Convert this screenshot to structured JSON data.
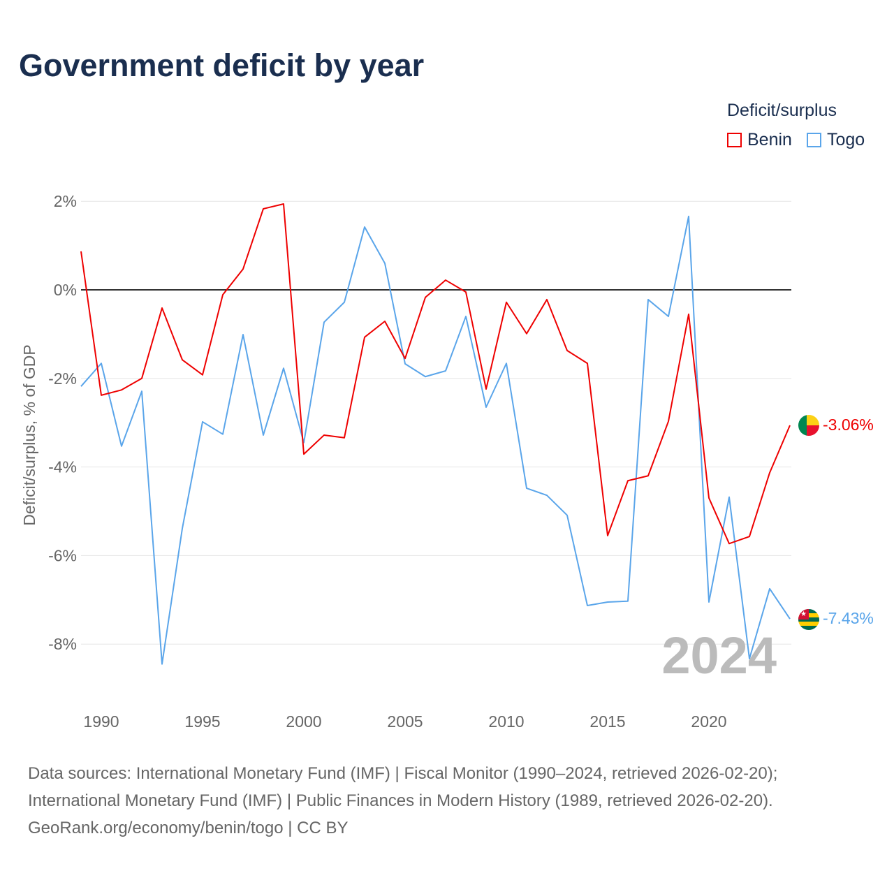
{
  "title": "Government deficit by year",
  "legend": {
    "title": "Deficit/surplus",
    "items": [
      {
        "label": "Benin",
        "color": "#ee0000"
      },
      {
        "label": "Togo",
        "color": "#5aa5ea"
      }
    ]
  },
  "watermark_year": "2024",
  "end_labels": {
    "benin": "-3.06%",
    "togo": "-7.43%"
  },
  "footer": {
    "line1": "Data sources: International Monetary Fund (IMF) | Fiscal Monitor (1990–2024, retrieved 2026-02-20);",
    "line2": "International Monetary Fund (IMF) | Public Finances in Modern History (1989, retrieved 2026-02-20).",
    "line3": "GeoRank.org/economy/benin/togo | CC BY"
  },
  "chart_data": {
    "type": "line",
    "title": "Government deficit by year",
    "xlabel": "",
    "ylabel": "Deficit/surplus, % of GDP",
    "x": [
      1989,
      1990,
      1991,
      1992,
      1993,
      1994,
      1995,
      1996,
      1997,
      1998,
      1999,
      2000,
      2001,
      2002,
      2003,
      2004,
      2005,
      2006,
      2007,
      2008,
      2009,
      2010,
      2011,
      2012,
      2013,
      2014,
      2015,
      2016,
      2017,
      2018,
      2019,
      2020,
      2021,
      2022,
      2023,
      2024
    ],
    "xticks": [
      "1990",
      "1995",
      "2000",
      "2005",
      "2010",
      "2015",
      "2020"
    ],
    "yticks": [
      "2%",
      "0%",
      "-2%",
      "-4%",
      "-6%",
      "-8%"
    ],
    "ytick_values": [
      2,
      0,
      -2,
      -4,
      -6,
      -8
    ],
    "xlim": [
      1989,
      2024
    ],
    "ylim": [
      -9.2,
      2.4
    ],
    "grid": true,
    "legend_position": "top-right",
    "series": [
      {
        "name": "Benin",
        "color": "#ee0000",
        "values": [
          0.87,
          -2.38,
          -2.26,
          -2.0,
          -0.41,
          -1.58,
          -1.92,
          -0.11,
          0.47,
          1.83,
          1.94,
          -3.71,
          -3.28,
          -3.34,
          -1.07,
          -0.71,
          -1.55,
          -0.17,
          0.22,
          -0.05,
          -2.24,
          -0.28,
          -0.99,
          -0.22,
          -1.37,
          -1.66,
          -5.55,
          -4.31,
          -4.2,
          -2.97,
          -0.55,
          -4.7,
          -5.73,
          -5.57,
          -4.13,
          -3.06
        ]
      },
      {
        "name": "Togo",
        "color": "#5aa5ea",
        "values": [
          -2.18,
          -1.66,
          -3.53,
          -2.29,
          -8.45,
          -5.39,
          -2.98,
          -3.26,
          -1.01,
          -3.28,
          -1.77,
          -3.45,
          -0.73,
          -0.28,
          1.42,
          0.6,
          -1.67,
          -1.96,
          -1.83,
          -0.6,
          -2.65,
          -1.66,
          -4.48,
          -4.64,
          -5.09,
          -7.13,
          -7.05,
          -7.03,
          -0.22,
          -0.6,
          1.66,
          -7.05,
          -4.68,
          -8.33,
          -6.75,
          -7.43
        ]
      }
    ]
  }
}
